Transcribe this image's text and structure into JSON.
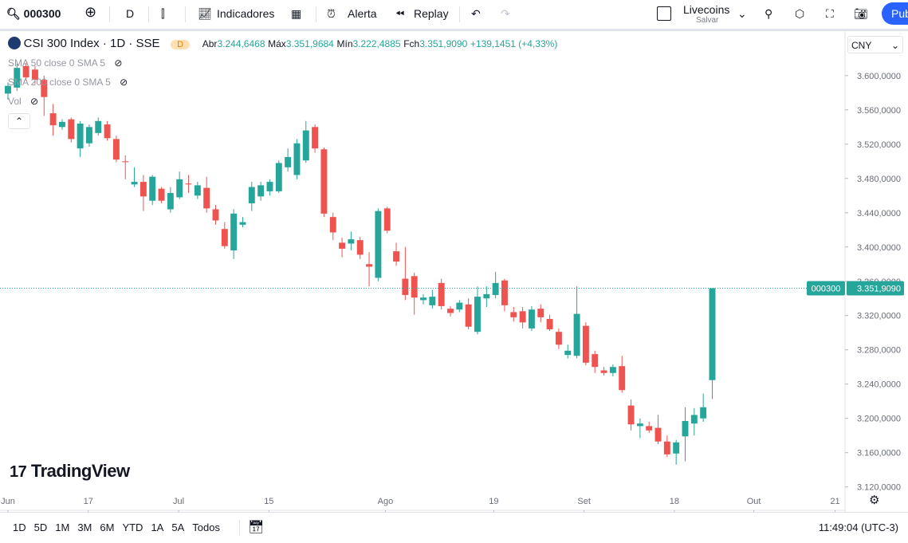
{
  "toolbar": {
    "symbol": "000300",
    "interval": "D",
    "indicators": "Indicadores",
    "alert": "Alerta",
    "replay": "Replay",
    "layout_name": "Livecoins",
    "layout_status": "Salvar",
    "publish": "Pub"
  },
  "legend": {
    "title": "CSI 300 Index · 1D · SSE",
    "badge": "D",
    "open_label": "Abr",
    "open": "3.244,6468",
    "high_label": "Máx",
    "high": "3.351,9684",
    "low_label": "Mín",
    "low": "3.222,4885",
    "close_label": "Fch",
    "close": "3.351,9090",
    "change": "+139,1451 (+4,33%)",
    "indicators": [
      "SMA 50 close 0 SMA 5",
      "SMA 200 close 0 SMA 5",
      "Vol"
    ]
  },
  "currency": "CNY",
  "price_tag": {
    "symbol": "000300",
    "price": "3.351,9090"
  },
  "logo": "TradingView",
  "ranges": [
    "1D",
    "5D",
    "1M",
    "3M",
    "6M",
    "YTD",
    "1A",
    "5A",
    "Todos"
  ],
  "clock": "11:49:04 (UTC-3)",
  "chart_data": {
    "type": "candlestick",
    "up_color": "#26a69a",
    "down_color": "#ef5350",
    "xlim": [
      -0.88,
      92.7
    ],
    "xticks": [
      {
        "value": 0,
        "label": "Jun"
      },
      {
        "value": 8.9,
        "label": "17"
      },
      {
        "value": 18.9,
        "label": "Jul"
      },
      {
        "value": 28.9,
        "label": "15"
      },
      {
        "value": 41.8,
        "label": "Ago"
      },
      {
        "value": 53.8,
        "label": "19"
      },
      {
        "value": 63.8,
        "label": "Set"
      },
      {
        "value": 73.8,
        "label": "18"
      },
      {
        "value": 82.6,
        "label": "Out"
      },
      {
        "value": 91.6,
        "label": "21"
      }
    ],
    "ylim": [
      3.116,
      3.651
    ],
    "yticks": [
      {
        "value": 3.12,
        "label": "3.120,0000"
      },
      {
        "value": 3.16,
        "label": "3.160,0000"
      },
      {
        "value": 3.2,
        "label": "3.200,0000"
      },
      {
        "value": 3.24,
        "label": "3.240,0000"
      },
      {
        "value": 3.28,
        "label": "3.280,0000"
      },
      {
        "value": 3.32,
        "label": "3.320,0000"
      },
      {
        "value": 3.36,
        "label": "3.360,0000"
      },
      {
        "value": 3.4,
        "label": "3.400,0000"
      },
      {
        "value": 3.44,
        "label": "3.440,0000"
      },
      {
        "value": 3.48,
        "label": "3.480,0000"
      },
      {
        "value": 3.52,
        "label": "3.520,0000"
      },
      {
        "value": 3.56,
        "label": "3.560,0000"
      },
      {
        "value": 3.6,
        "label": "3.600,0000"
      }
    ],
    "ohlc": [
      [
        3.579,
        3.592,
        3.572,
        3.588
      ],
      [
        3.586,
        3.614,
        3.582,
        3.609
      ],
      [
        3.611,
        3.615,
        3.594,
        3.598
      ],
      [
        3.607,
        3.611,
        3.59,
        3.595
      ],
      [
        3.595,
        3.6,
        3.553,
        3.575
      ],
      [
        3.556,
        3.567,
        3.53,
        3.542
      ],
      [
        3.54,
        3.549,
        3.537,
        3.546
      ],
      [
        3.549,
        3.551,
        3.522,
        3.526
      ],
      [
        3.515,
        3.547,
        3.505,
        3.544
      ],
      [
        3.521,
        3.543,
        3.517,
        3.54
      ],
      [
        3.533,
        3.551,
        3.53,
        3.547
      ],
      [
        3.543,
        3.547,
        3.524,
        3.527
      ],
      [
        3.526,
        3.53,
        3.499,
        3.502
      ],
      [
        3.5,
        3.507,
        3.479,
        3.499
      ],
      [
        3.473,
        3.493,
        3.47,
        3.476
      ],
      [
        3.476,
        3.484,
        3.442,
        3.459
      ],
      [
        3.454,
        3.484,
        3.449,
        3.482
      ],
      [
        3.468,
        3.47,
        3.451,
        3.454
      ],
      [
        3.444,
        3.47,
        3.44,
        3.463
      ],
      [
        3.458,
        3.488,
        3.456,
        3.479
      ],
      [
        3.474,
        3.484,
        3.463,
        3.473
      ],
      [
        3.46,
        3.476,
        3.456,
        3.472
      ],
      [
        3.469,
        3.482,
        3.44,
        3.445
      ],
      [
        3.444,
        3.449,
        3.426,
        3.431
      ],
      [
        3.421,
        3.429,
        3.398,
        3.401
      ],
      [
        3.396,
        3.444,
        3.386,
        3.439
      ],
      [
        3.426,
        3.435,
        3.423,
        3.429
      ],
      [
        3.451,
        3.476,
        3.442,
        3.47
      ],
      [
        3.459,
        3.476,
        3.454,
        3.472
      ],
      [
        3.465,
        3.479,
        3.46,
        3.476
      ],
      [
        3.465,
        3.501,
        3.463,
        3.498
      ],
      [
        3.493,
        3.515,
        3.488,
        3.505
      ],
      [
        3.484,
        3.526,
        3.479,
        3.521
      ],
      [
        3.501,
        3.547,
        3.498,
        3.536
      ],
      [
        3.54,
        3.543,
        3.51,
        3.515
      ],
      [
        3.514,
        3.516,
        3.435,
        3.439
      ],
      [
        3.435,
        3.44,
        3.408,
        3.417
      ],
      [
        3.405,
        3.411,
        3.388,
        3.398
      ],
      [
        3.404,
        3.418,
        3.396,
        3.409
      ],
      [
        3.408,
        3.412,
        3.386,
        3.391
      ],
      [
        3.38,
        3.394,
        3.354,
        3.377
      ],
      [
        3.364,
        3.445,
        3.36,
        3.442
      ],
      [
        3.445,
        3.447,
        3.416,
        3.419
      ],
      [
        3.395,
        3.405,
        3.378,
        3.383
      ],
      [
        3.363,
        3.4,
        3.338,
        3.344
      ],
      [
        3.366,
        3.37,
        3.321,
        3.341
      ],
      [
        3.338,
        3.345,
        3.333,
        3.341
      ],
      [
        3.332,
        3.35,
        3.328,
        3.342
      ],
      [
        3.358,
        3.363,
        3.327,
        3.331
      ],
      [
        3.328,
        3.331,
        3.319,
        3.323
      ],
      [
        3.327,
        3.338,
        3.324,
        3.335
      ],
      [
        3.333,
        3.34,
        3.304,
        3.307
      ],
      [
        3.301,
        3.354,
        3.298,
        3.342
      ],
      [
        3.34,
        3.354,
        3.33,
        3.345
      ],
      [
        3.344,
        3.371,
        3.34,
        3.358
      ],
      [
        3.361,
        3.363,
        3.325,
        3.332
      ],
      [
        3.324,
        3.33,
        3.313,
        3.318
      ],
      [
        3.325,
        3.33,
        3.305,
        3.312
      ],
      [
        3.305,
        3.331,
        3.302,
        3.327
      ],
      [
        3.328,
        3.333,
        3.312,
        3.318
      ],
      [
        3.316,
        3.321,
        3.302,
        3.304
      ],
      [
        3.301,
        3.305,
        3.281,
        3.286
      ],
      [
        3.274,
        3.286,
        3.27,
        3.279
      ],
      [
        3.273,
        3.354,
        3.27,
        3.322
      ],
      [
        3.308,
        3.312,
        3.262,
        3.265
      ],
      [
        3.275,
        3.279,
        3.253,
        3.26
      ],
      [
        3.256,
        3.26,
        3.25,
        3.253
      ],
      [
        3.253,
        3.263,
        3.249,
        3.26
      ],
      [
        3.261,
        3.273,
        3.23,
        3.233
      ],
      [
        3.215,
        3.222,
        3.186,
        3.193
      ],
      [
        3.191,
        3.2,
        3.177,
        3.194
      ],
      [
        3.191,
        3.196,
        3.183,
        3.186
      ],
      [
        3.189,
        3.204,
        3.17,
        3.173
      ],
      [
        3.173,
        3.18,
        3.155,
        3.158
      ],
      [
        3.159,
        3.175,
        3.146,
        3.172
      ],
      [
        3.179,
        3.213,
        3.15,
        3.197
      ],
      [
        3.194,
        3.212,
        3.18,
        3.204
      ],
      [
        3.2,
        3.229,
        3.196,
        3.213
      ],
      [
        3.2446468,
        3.3519684,
        3.2224885,
        3.351909
      ]
    ]
  }
}
